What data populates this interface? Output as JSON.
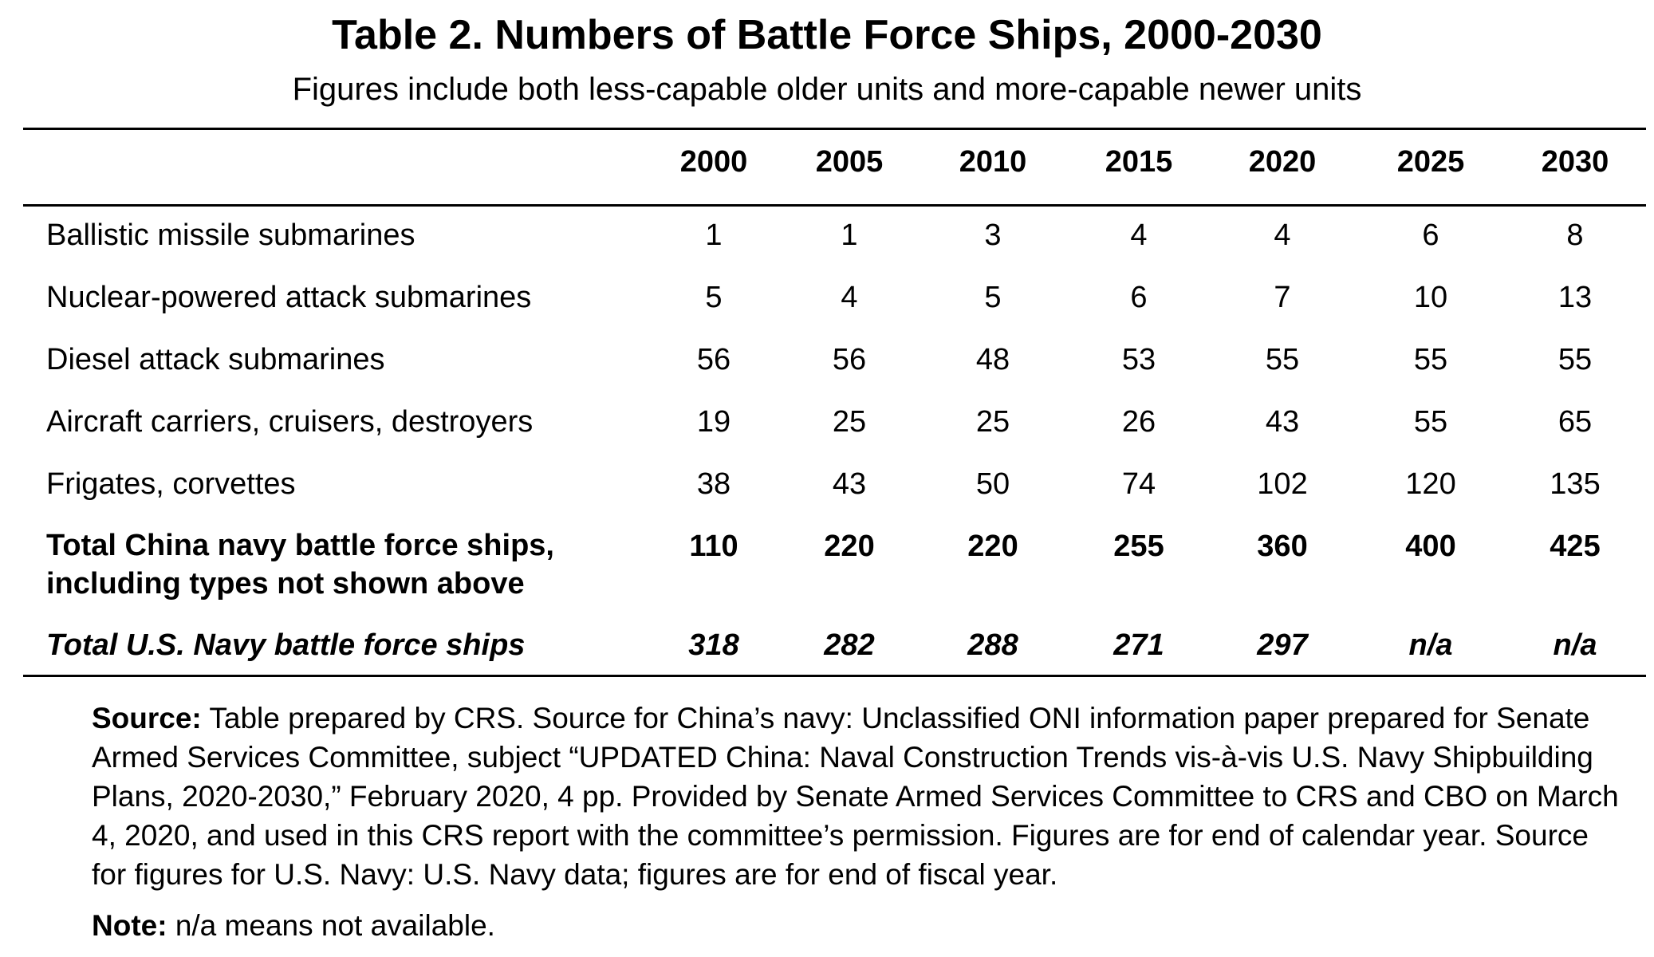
{
  "title": "Table 2. Numbers of Battle Force Ships, 2000-2030",
  "subtitle": "Figures include both less-capable older units and more-capable newer units",
  "table": {
    "years": [
      "2000",
      "2005",
      "2010",
      "2015",
      "2020",
      "2025",
      "2030"
    ],
    "rows": [
      {
        "label": "Ballistic missile submarines",
        "values": [
          "1",
          "1",
          "3",
          "4",
          "4",
          "6",
          "8"
        ]
      },
      {
        "label": "Nuclear-powered attack submarines",
        "values": [
          "5",
          "4",
          "5",
          "6",
          "7",
          "10",
          "13"
        ]
      },
      {
        "label": "Diesel attack submarines",
        "values": [
          "56",
          "56",
          "48",
          "53",
          "55",
          "55",
          "55"
        ]
      },
      {
        "label": "Aircraft carriers, cruisers, destroyers",
        "values": [
          "19",
          "25",
          "25",
          "26",
          "43",
          "55",
          "65"
        ]
      },
      {
        "label": "Frigates, corvettes",
        "values": [
          "38",
          "43",
          "50",
          "74",
          "102",
          "120",
          "135"
        ]
      },
      {
        "label_line1": "Total China navy battle force ships,",
        "label_line2": "including types not shown above",
        "values": [
          "110",
          "220",
          "220",
          "255",
          "360",
          "400",
          "425"
        ]
      },
      {
        "label": "Total U.S. Navy battle force ships",
        "values": [
          "318",
          "282",
          "288",
          "271",
          "297",
          "n/a",
          "n/a"
        ]
      }
    ]
  },
  "source": {
    "label": "Source:",
    "text": "Table prepared by CRS. Source for China’s navy: Unclassified ONI information paper prepared for Senate Armed Services Committee, subject “UPDATED China: Naval Construction Trends vis-à-vis U.S. Navy Shipbuilding Plans, 2020-2030,” February 2020, 4 pp. Provided by Senate Armed Services Committee to CRS and CBO on March 4, 2020, and used in this CRS report with the committee’s permission. Figures are for end of calendar year. Source for figures for U.S. Navy: U.S. Navy data; figures are for end of fiscal year."
  },
  "note": {
    "label": "Note:",
    "text": "n/a means not available."
  }
}
